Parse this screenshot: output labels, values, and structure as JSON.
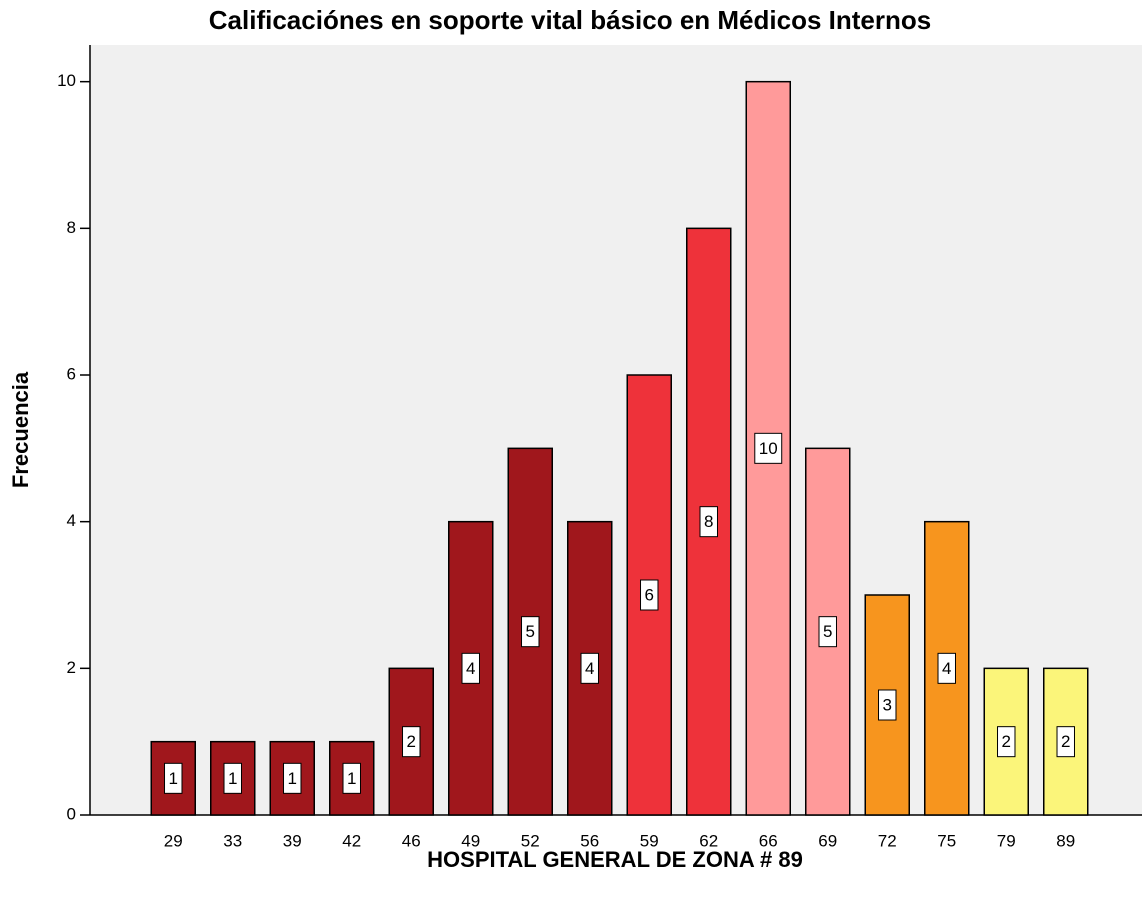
{
  "chart_data": {
    "type": "bar",
    "title": "Calificaciónes en soporte vital básico en Médicos Internos",
    "x_label": "HOSPITAL GENERAL DE ZONA # 89",
    "y_label": "Frecuencia",
    "categories": [
      "29",
      "33",
      "39",
      "42",
      "46",
      "49",
      "52",
      "56",
      "59",
      "62",
      "66",
      "69",
      "72",
      "75",
      "79",
      "89"
    ],
    "values": [
      1,
      1,
      1,
      1,
      2,
      4,
      5,
      4,
      6,
      8,
      10,
      5,
      3,
      4,
      2,
      2
    ],
    "colors": [
      "#a0171c",
      "#a0171c",
      "#a0171c",
      "#a0171c",
      "#a0171c",
      "#a0171c",
      "#a0171c",
      "#a0171c",
      "#ee323a",
      "#ee323a",
      "#ff9a9a",
      "#ff9a9a",
      "#f7951e",
      "#f7951e",
      "#fbf57a",
      "#fbf57a"
    ],
    "ylim": [
      0,
      10.5
    ],
    "yticks": [
      0,
      2,
      4,
      6,
      8,
      10
    ]
  }
}
